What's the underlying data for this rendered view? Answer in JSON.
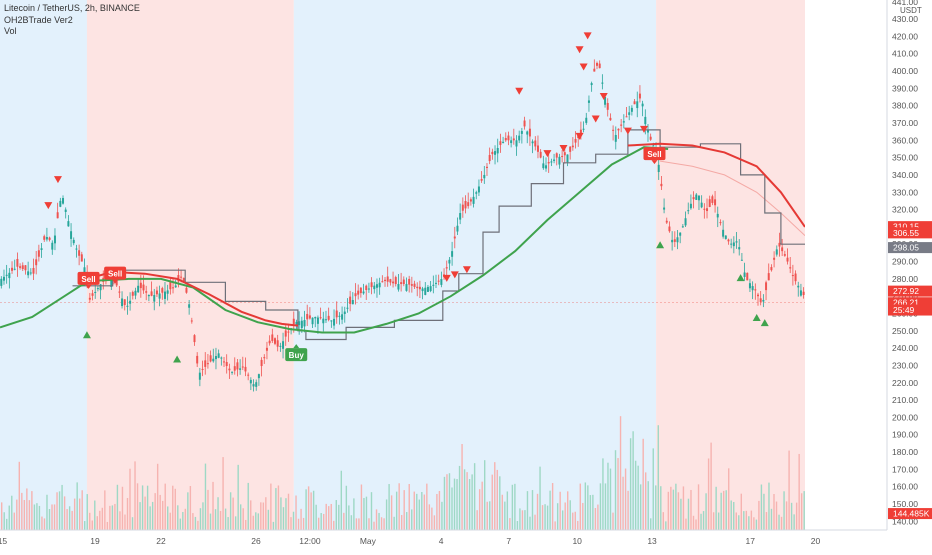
{
  "legend": {
    "line1": "Litecoin / TetherUS, 2h, BINANCE",
    "line2": "OH2BTrade Ver2",
    "line3": "Vol"
  },
  "chart_data": {
    "type": "candlestick",
    "symbol": "Litecoin / TetherUS",
    "interval": "2h",
    "exchange": "BINANCE",
    "currency_label": "USDT",
    "ylim": [
      135,
      441
    ],
    "y_ticks": [
      140,
      150,
      160,
      170,
      180,
      190,
      200,
      210,
      220,
      230,
      240,
      250,
      260,
      270,
      280,
      290,
      300,
      310,
      320,
      330,
      340,
      350,
      360,
      370,
      380,
      390,
      400,
      410,
      420,
      430
    ],
    "top_tick_partial": "441.00",
    "x_ticks": [
      "15",
      "19",
      "22",
      "26",
      "12:00",
      "May",
      "4",
      "7",
      "10",
      "13",
      "17",
      "20"
    ],
    "price_labels": [
      {
        "value": 310.15,
        "text": "310.15",
        "color": "#ef3e36"
      },
      {
        "value": 306.55,
        "text": "306.55",
        "color": "#ef3e36"
      },
      {
        "value": 298.05,
        "text": "298.05",
        "color": "#787b86"
      },
      {
        "value": 272.92,
        "text": "272.92",
        "color": "#ef3e36"
      },
      {
        "value": 266.21,
        "text": "266.21",
        "color": "#ef3e36"
      },
      {
        "value": 262.0,
        "text": "25:49",
        "color": "#ef3e36"
      },
      {
        "value": 144.485,
        "text": "144.485K",
        "color": "#ef3e36"
      }
    ],
    "annotations": [
      {
        "text": "Sell",
        "type": "sell",
        "x": 0.11,
        "y": 280
      },
      {
        "text": "Sell",
        "type": "sell",
        "x": 0.143,
        "y": 283
      },
      {
        "text": "Buy",
        "type": "buy",
        "x": 0.368,
        "y": 236
      },
      {
        "text": "Sell",
        "type": "sell",
        "x": 0.813,
        "y": 352
      }
    ],
    "trend_zones": [
      {
        "start": 0.0,
        "end": 0.108,
        "trend": "up"
      },
      {
        "start": 0.108,
        "end": 0.365,
        "trend": "down"
      },
      {
        "start": 0.365,
        "end": 0.815,
        "trend": "up"
      },
      {
        "start": 0.815,
        "end": 1.0,
        "trend": "down"
      }
    ],
    "close_path": [
      [
        0.0,
        280
      ],
      [
        0.02,
        287
      ],
      [
        0.04,
        283
      ],
      [
        0.055,
        305
      ],
      [
        0.065,
        300
      ],
      [
        0.075,
        330
      ],
      [
        0.085,
        310
      ],
      [
        0.095,
        295
      ],
      [
        0.105,
        285
      ],
      [
        0.11,
        268
      ],
      [
        0.125,
        278
      ],
      [
        0.14,
        280
      ],
      [
        0.155,
        263
      ],
      [
        0.17,
        276
      ],
      [
        0.185,
        270
      ],
      [
        0.2,
        272
      ],
      [
        0.215,
        275
      ],
      [
        0.225,
        282
      ],
      [
        0.235,
        262
      ],
      [
        0.245,
        225
      ],
      [
        0.255,
        230
      ],
      [
        0.27,
        237
      ],
      [
        0.285,
        226
      ],
      [
        0.3,
        229
      ],
      [
        0.315,
        218
      ],
      [
        0.325,
        232
      ],
      [
        0.335,
        245
      ],
      [
        0.345,
        240
      ],
      [
        0.355,
        248
      ],
      [
        0.365,
        255
      ],
      [
        0.375,
        256
      ],
      [
        0.39,
        258
      ],
      [
        0.41,
        256
      ],
      [
        0.425,
        260
      ],
      [
        0.44,
        270
      ],
      [
        0.455,
        274
      ],
      [
        0.475,
        279
      ],
      [
        0.49,
        277
      ],
      [
        0.505,
        277
      ],
      [
        0.52,
        274
      ],
      [
        0.535,
        276
      ],
      [
        0.55,
        281
      ],
      [
        0.56,
        296
      ],
      [
        0.57,
        318
      ],
      [
        0.58,
        322
      ],
      [
        0.59,
        330
      ],
      [
        0.6,
        340
      ],
      [
        0.61,
        352
      ],
      [
        0.625,
        360
      ],
      [
        0.64,
        360
      ],
      [
        0.65,
        368
      ],
      [
        0.665,
        355
      ],
      [
        0.675,
        345
      ],
      [
        0.69,
        350
      ],
      [
        0.705,
        352
      ],
      [
        0.715,
        360
      ],
      [
        0.725,
        368
      ],
      [
        0.735,
        398
      ],
      [
        0.742,
        405
      ],
      [
        0.752,
        380
      ],
      [
        0.762,
        362
      ],
      [
        0.772,
        370
      ],
      [
        0.785,
        380
      ],
      [
        0.795,
        385
      ],
      [
        0.805,
        362
      ],
      [
        0.815,
        352
      ],
      [
        0.825,
        315
      ],
      [
        0.835,
        300
      ],
      [
        0.845,
        308
      ],
      [
        0.855,
        322
      ],
      [
        0.865,
        330
      ],
      [
        0.875,
        318
      ],
      [
        0.885,
        325
      ],
      [
        0.895,
        310
      ],
      [
        0.905,
        300
      ],
      [
        0.915,
        302
      ],
      [
        0.925,
        280
      ],
      [
        0.935,
        275
      ],
      [
        0.945,
        265
      ],
      [
        0.955,
        282
      ],
      [
        0.965,
        300
      ],
      [
        0.975,
        292
      ],
      [
        0.985,
        280
      ],
      [
        1.0,
        268
      ]
    ],
    "ema_green": [
      [
        0.0,
        252
      ],
      [
        0.04,
        258
      ],
      [
        0.08,
        270
      ],
      [
        0.1,
        276
      ],
      [
        0.12,
        279
      ],
      [
        0.16,
        280
      ],
      [
        0.2,
        280
      ],
      [
        0.24,
        275
      ],
      [
        0.28,
        262
      ],
      [
        0.32,
        255
      ],
      [
        0.36,
        251
      ],
      [
        0.4,
        249
      ],
      [
        0.44,
        249
      ],
      [
        0.48,
        254
      ],
      [
        0.52,
        260
      ],
      [
        0.56,
        270
      ],
      [
        0.6,
        282
      ],
      [
        0.64,
        296
      ],
      [
        0.68,
        314
      ],
      [
        0.72,
        330
      ],
      [
        0.76,
        346
      ],
      [
        0.8,
        356
      ],
      [
        0.83,
        355
      ]
    ],
    "ema_red": [
      [
        0.1,
        279
      ],
      [
        0.14,
        284
      ],
      [
        0.18,
        283
      ],
      [
        0.22,
        280
      ],
      [
        0.26,
        271
      ],
      [
        0.3,
        261
      ],
      [
        0.33,
        256
      ],
      [
        0.35,
        254
      ],
      [
        0.37,
        253
      ]
    ],
    "ema_red_2": [
      [
        0.78,
        357
      ],
      [
        0.82,
        358
      ],
      [
        0.86,
        357
      ],
      [
        0.9,
        353
      ],
      [
        0.94,
        345
      ],
      [
        0.97,
        330
      ],
      [
        1.0,
        310
      ]
    ],
    "ema_fade": [
      [
        0.82,
        348
      ],
      [
        0.86,
        345
      ],
      [
        0.9,
        340
      ],
      [
        0.94,
        330
      ],
      [
        0.97,
        318
      ],
      [
        1.0,
        305
      ]
    ],
    "stair_line": [
      [
        0.09,
        276
      ],
      [
        0.14,
        276
      ],
      [
        0.14,
        285
      ],
      [
        0.23,
        285
      ],
      [
        0.23,
        278
      ],
      [
        0.28,
        278
      ],
      [
        0.28,
        267
      ],
      [
        0.33,
        267
      ],
      [
        0.33,
        262
      ],
      [
        0.37,
        262
      ],
      [
        0.37,
        250
      ],
      [
        0.38,
        250
      ],
      [
        0.38,
        245
      ],
      [
        0.43,
        245
      ],
      [
        0.43,
        252
      ],
      [
        0.49,
        252
      ],
      [
        0.49,
        256
      ],
      [
        0.55,
        256
      ],
      [
        0.55,
        273
      ],
      [
        0.57,
        273
      ],
      [
        0.57,
        283
      ],
      [
        0.6,
        283
      ],
      [
        0.6,
        307
      ],
      [
        0.62,
        307
      ],
      [
        0.62,
        322
      ],
      [
        0.66,
        322
      ],
      [
        0.66,
        335
      ],
      [
        0.7,
        335
      ],
      [
        0.7,
        347
      ],
      [
        0.74,
        347
      ],
      [
        0.74,
        352
      ],
      [
        0.78,
        352
      ],
      [
        0.78,
        366
      ],
      [
        0.82,
        366
      ],
      [
        0.82,
        356
      ],
      [
        0.87,
        356
      ],
      [
        0.87,
        358
      ],
      [
        0.92,
        358
      ],
      [
        0.92,
        340
      ],
      [
        0.95,
        340
      ],
      [
        0.95,
        318
      ],
      [
        0.97,
        318
      ],
      [
        0.97,
        300
      ],
      [
        1.0,
        300
      ]
    ],
    "triangles_down": [
      [
        0.06,
        322
      ],
      [
        0.072,
        337
      ],
      [
        0.555,
        280
      ],
      [
        0.565,
        282
      ],
      [
        0.58,
        285
      ],
      [
        0.68,
        352
      ],
      [
        0.7,
        355
      ],
      [
        0.72,
        362
      ],
      [
        0.74,
        372
      ],
      [
        0.75,
        385
      ],
      [
        0.78,
        365
      ],
      [
        0.8,
        366
      ],
      [
        0.645,
        388
      ],
      [
        0.73,
        420
      ],
      [
        0.72,
        412
      ],
      [
        0.725,
        402
      ]
    ],
    "triangles_up": [
      [
        0.108,
        248
      ],
      [
        0.22,
        234
      ],
      [
        0.82,
        300
      ],
      [
        0.92,
        281
      ],
      [
        0.94,
        258
      ],
      [
        0.95,
        255
      ]
    ]
  }
}
